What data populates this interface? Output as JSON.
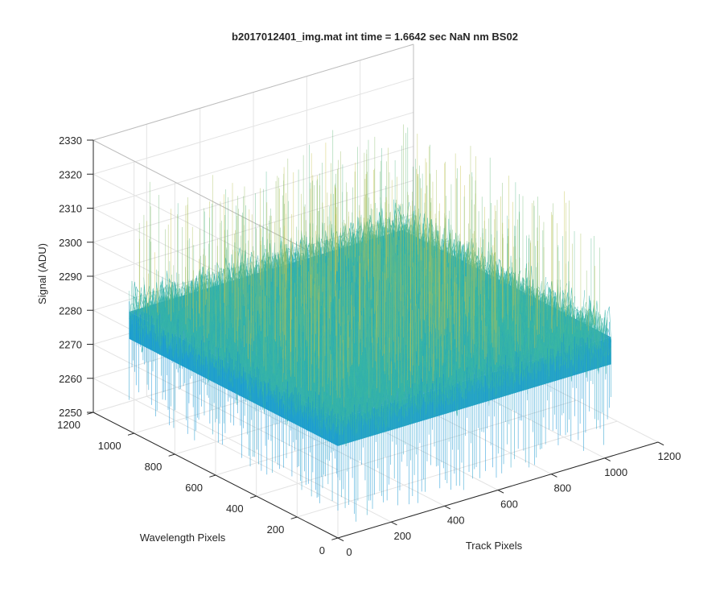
{
  "chart_data": {
    "type": "surface",
    "title": "b2017012401_img.mat int time = 1.6642 sec  NaN nm BS02",
    "xlabel": "Track Pixels",
    "ylabel": "Wavelength Pixels",
    "zlabel": "Signal (ADU)",
    "xlim": [
      0,
      1200
    ],
    "ylim": [
      0,
      1200
    ],
    "zlim": [
      2250,
      2330
    ],
    "xticks": [
      "0",
      "200",
      "400",
      "600",
      "800",
      "1000",
      "1200"
    ],
    "yticks": [
      "0",
      "200",
      "400",
      "600",
      "800",
      "1000",
      "1200"
    ],
    "zticks": [
      "2250",
      "2260",
      "2270",
      "2280",
      "2290",
      "2300",
      "2310",
      "2320",
      "2330"
    ],
    "surface_extent": {
      "x": [
        0,
        1024
      ],
      "y": [
        0,
        1024
      ]
    },
    "signal_mean": 2285,
    "signal_range": [
      2255,
      2325
    ],
    "grid": true,
    "colormap": "parula",
    "colors": {
      "low": "#0d8fd8",
      "mid": "#3cb9a0",
      "high": "#e3c33a"
    }
  }
}
